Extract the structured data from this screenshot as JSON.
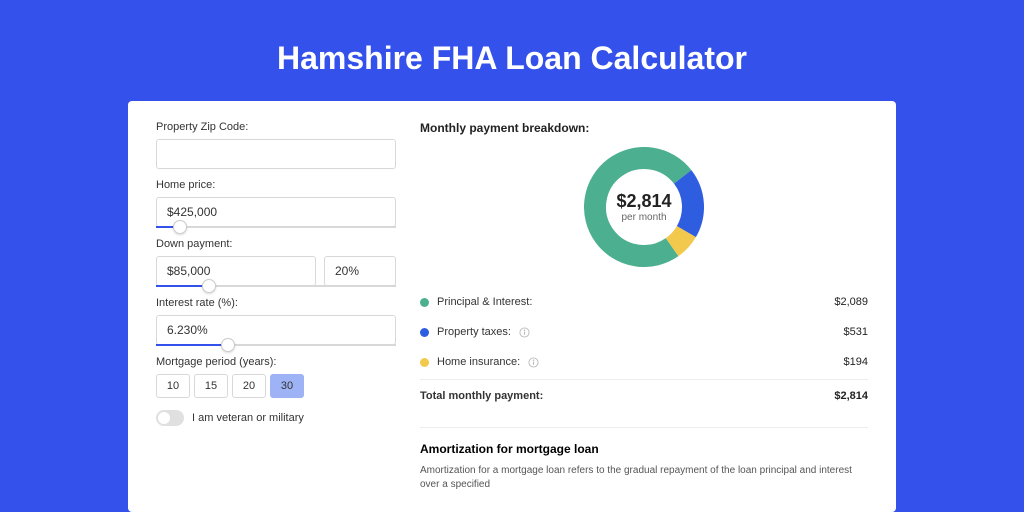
{
  "page": {
    "title": "Hamshire FHA Loan Calculator",
    "colors": {
      "bg": "#3452eb",
      "card": "#ffffff"
    }
  },
  "form": {
    "zip": {
      "label": "Property Zip Code:",
      "value": ""
    },
    "price": {
      "label": "Home price:",
      "value": "$425,000",
      "slider_fill_pct": 10,
      "slider_thumb_pct": 10
    },
    "down": {
      "label": "Down payment:",
      "amount": "$85,000",
      "pct": "20%",
      "slider_fill_pct": 22,
      "slider_thumb_pct": 22
    },
    "rate": {
      "label": "Interest rate (%):",
      "value": "6.230%",
      "slider_fill_pct": 30,
      "slider_thumb_pct": 30
    },
    "period": {
      "label": "Mortgage period (years):",
      "options": [
        "10",
        "15",
        "20",
        "30"
      ],
      "selected": "30"
    },
    "veteran": {
      "label": "I am veteran or military",
      "checked": false
    }
  },
  "breakdown": {
    "title": "Monthly payment breakdown:",
    "center_amount": "$2,814",
    "center_sub": "per month",
    "items": [
      {
        "label": "Principal & Interest:",
        "value": "$2,089",
        "color": "#4caf8f",
        "has_info": false
      },
      {
        "label": "Property taxes:",
        "value": "$531",
        "color": "#2f5de0",
        "has_info": true
      },
      {
        "label": "Home insurance:",
        "value": "$194",
        "color": "#f2c94c",
        "has_info": true
      }
    ],
    "total": {
      "label": "Total monthly payment:",
      "value": "$2,814"
    },
    "donut": {
      "segments": [
        {
          "color": "#4caf8f",
          "pct": 74.2,
          "value": 2089
        },
        {
          "color": "#2f5de0",
          "pct": 18.9,
          "value": 531
        },
        {
          "color": "#f2c94c",
          "pct": 6.9,
          "value": 194
        }
      ],
      "start_deg": 55,
      "thickness": 22,
      "radius": 60
    }
  },
  "amort": {
    "title": "Amortization for mortgage loan",
    "text": "Amortization for a mortgage loan refers to the gradual repayment of the loan principal and interest over a specified"
  }
}
